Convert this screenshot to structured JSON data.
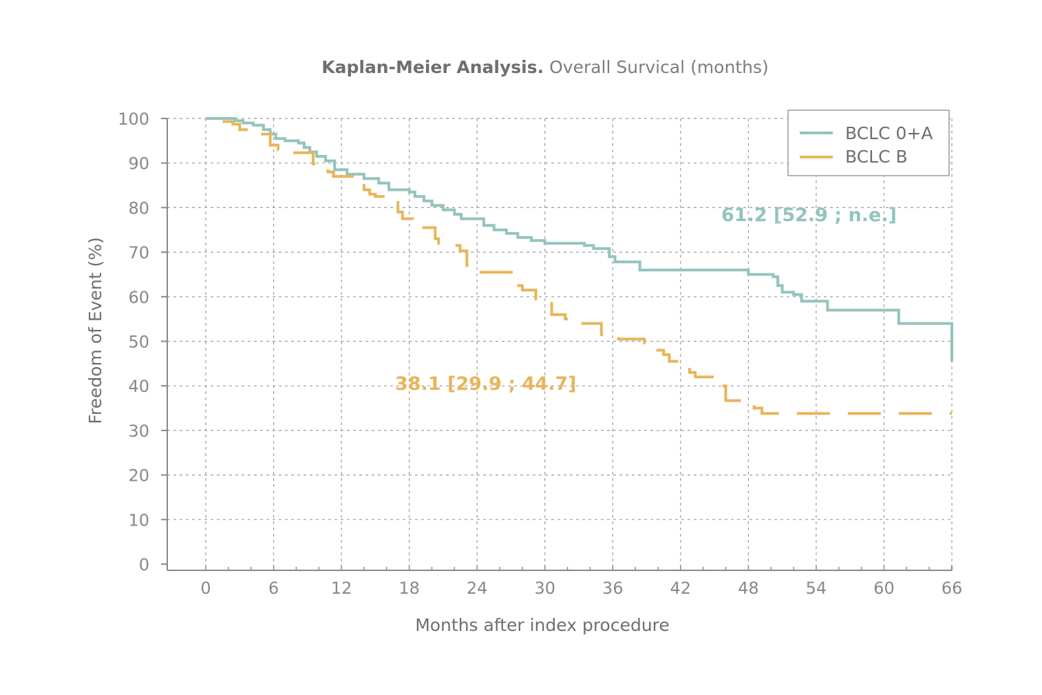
{
  "chart_data": {
    "type": "line",
    "title_bold": "Kaplan-Meier Analysis.",
    "title_rest": "Overall Survical (months)",
    "xlabel": "Months after index procedure",
    "ylabel": "Freedom of Event (%)",
    "xlim": [
      0,
      66
    ],
    "ylim": [
      0,
      100
    ],
    "x_ticks": [
      "0",
      "6",
      "12",
      "18",
      "24",
      "30",
      "36",
      "42",
      "48",
      "54",
      "60",
      "66"
    ],
    "y_ticks": [
      "0",
      "10",
      "20",
      "30",
      "40",
      "50",
      "60",
      "70",
      "80",
      "90",
      "100"
    ],
    "grid": true,
    "legend_position": "top-right",
    "colors": {
      "teal": "#93c4bd",
      "orange": "#e8b55a",
      "axis": "#888888",
      "grid": "#9a9a9a"
    },
    "series": [
      {
        "name": "BCLC 0+A",
        "color": "#93c4bd",
        "style": "solid",
        "x": [
          0,
          2.6,
          3.3,
          4.2,
          5.1,
          5.7,
          6.2,
          7.0,
          8.2,
          8.7,
          9.2,
          9.8,
          10.6,
          11.4,
          12.5,
          14.0,
          15.3,
          16.2,
          18.0,
          18.5,
          19.3,
          20.0,
          21.0,
          22.0,
          22.6,
          24.6,
          25.5,
          26.6,
          27.6,
          28.8,
          30.0,
          33.5,
          34.3,
          35.7,
          36.2,
          38.4,
          48.0,
          50.2,
          50.6,
          51.0,
          52.0,
          52.7,
          55.0,
          61.3,
          66.0
        ],
        "y": [
          100,
          99.5,
          99,
          98.5,
          97.5,
          96.5,
          95.5,
          95,
          94.5,
          93.5,
          92.5,
          91.5,
          90.5,
          88.5,
          87.5,
          86.5,
          85.5,
          84,
          83.5,
          82.5,
          81.5,
          80.5,
          79.5,
          78.5,
          77.5,
          76,
          75,
          74.2,
          73.3,
          72.6,
          72,
          71.5,
          70.8,
          69,
          67.8,
          66,
          65,
          64.5,
          62.5,
          61,
          60.5,
          59,
          57,
          54,
          45.5
        ]
      },
      {
        "name": "BCLC B",
        "color": "#e8b55a",
        "style": "dashed",
        "x": [
          1.5,
          2.4,
          3.0,
          3.8,
          5.7,
          6.4,
          7.5,
          9.5,
          10.2,
          10.8,
          11.3,
          13.2,
          14.0,
          14.5,
          15.0,
          15.7,
          17.0,
          17.4,
          18.3,
          18.9,
          20.3,
          20.6,
          21.8,
          22.5,
          23.1,
          23.6,
          27.5,
          28.0,
          29.2,
          30.6,
          31.8,
          32.5,
          35.0,
          36.5,
          38.8,
          40.5,
          41.0,
          42.8,
          43.3,
          44.8,
          46.0,
          48.5,
          49.2,
          66.0
        ],
        "y": [
          99.3,
          98.7,
          97.5,
          96.5,
          94,
          93,
          92.3,
          89.8,
          89,
          88,
          87,
          85,
          84,
          83,
          82.5,
          81.5,
          79,
          77.5,
          76.5,
          75.5,
          73,
          72,
          71.5,
          70.3,
          67,
          65.5,
          62.5,
          61.5,
          59.5,
          56,
          55,
          54,
          51.5,
          50.5,
          48,
          47,
          45.5,
          43,
          42,
          40,
          36.7,
          35,
          33.8,
          33.8
        ]
      }
    ],
    "annotations": [
      {
        "text": "61.2 [52.9 ; n.e.]",
        "series": "BCLC 0+A"
      },
      {
        "text": "38.1 [29.9 ; 44.7]",
        "series": "BCLC B"
      }
    ]
  }
}
